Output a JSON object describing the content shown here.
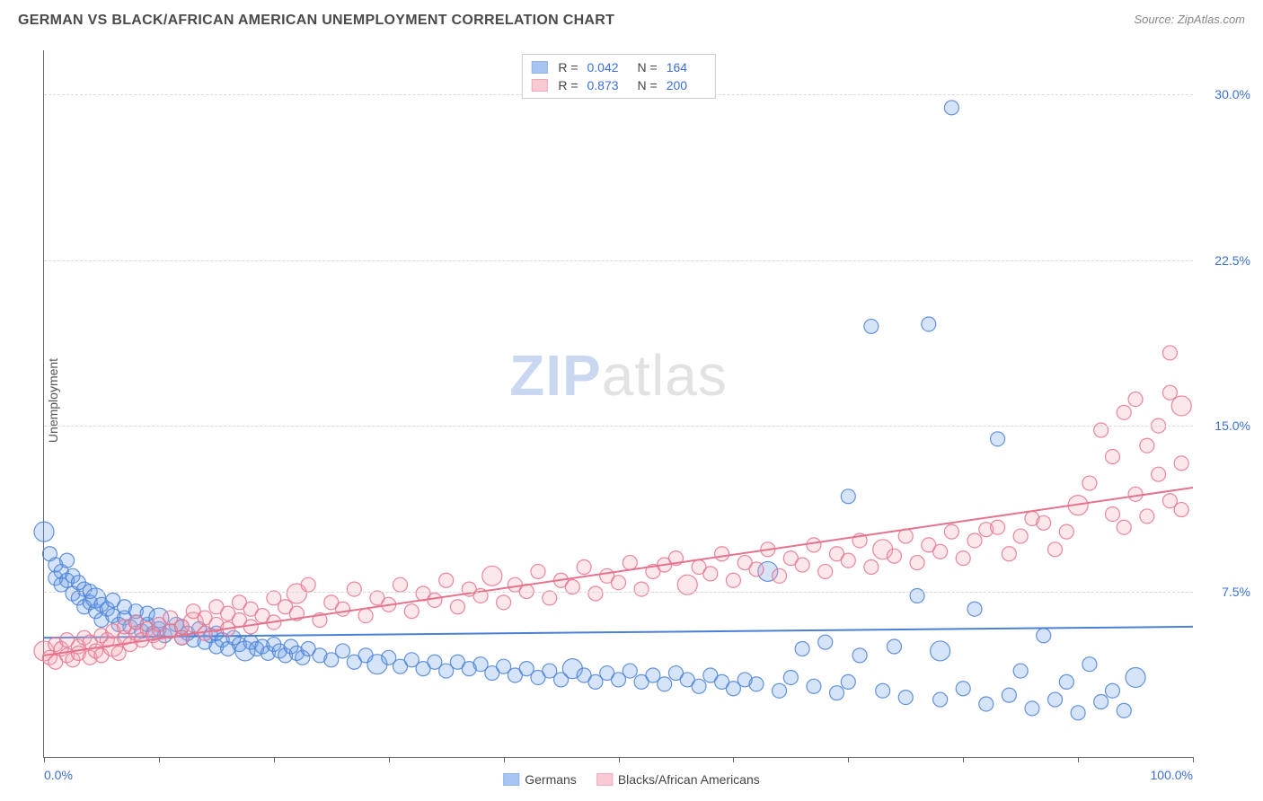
{
  "title": "GERMAN VS BLACK/AFRICAN AMERICAN UNEMPLOYMENT CORRELATION CHART",
  "source": "Source: ZipAtlas.com",
  "ylabel": "Unemployment",
  "watermark_a": "ZIP",
  "watermark_b": "atlas",
  "chart": {
    "type": "scatter",
    "background_color": "#ffffff",
    "grid_color": "#d8d8d8",
    "axis_color": "#666666",
    "xlim": [
      0,
      100
    ],
    "ylim": [
      0,
      32
    ],
    "xticks": [
      0,
      10,
      20,
      30,
      40,
      50,
      60,
      70,
      80,
      90,
      100
    ],
    "xtick_labels": {
      "0": "0.0%",
      "100": "100.0%"
    },
    "yticks": [
      7.5,
      15.0,
      22.5,
      30.0
    ],
    "ytick_labels": [
      "7.5%",
      "15.0%",
      "22.5%",
      "30.0%"
    ],
    "marker_radius": 8,
    "marker_radius_large": 11,
    "marker_fill_opacity": 0.28,
    "marker_stroke_opacity": 0.85,
    "marker_stroke_width": 1.2,
    "trend_line_width": 2,
    "series": [
      {
        "key": "germans",
        "label": "Germans",
        "color": "#6d9eeb",
        "stroke": "#4a80d6",
        "trend": {
          "y_at_x0": 5.4,
          "y_at_x100": 5.9
        },
        "R": "0.042",
        "N": "164",
        "points": [
          [
            0,
            10.2
          ],
          [
            0.5,
            9.2
          ],
          [
            1,
            8.7
          ],
          [
            1,
            8.1
          ],
          [
            1.5,
            8.4
          ],
          [
            1.5,
            7.8
          ],
          [
            2,
            8.0
          ],
          [
            2,
            8.9
          ],
          [
            2.5,
            7.4
          ],
          [
            2.5,
            8.2
          ],
          [
            3,
            7.2
          ],
          [
            3,
            7.9
          ],
          [
            3.5,
            7.6
          ],
          [
            3.5,
            6.8
          ],
          [
            4,
            7.0
          ],
          [
            4,
            7.5
          ],
          [
            4.5,
            6.6
          ],
          [
            4.5,
            7.2
          ],
          [
            5,
            6.9
          ],
          [
            5,
            6.2
          ],
          [
            5.5,
            6.7
          ],
          [
            6,
            6.4
          ],
          [
            6,
            7.1
          ],
          [
            6.5,
            6.0
          ],
          [
            7,
            6.3
          ],
          [
            7,
            6.8
          ],
          [
            7.5,
            5.9
          ],
          [
            8,
            6.1
          ],
          [
            8,
            6.6
          ],
          [
            8.5,
            5.7
          ],
          [
            9,
            6.0
          ],
          [
            9,
            6.5
          ],
          [
            9.5,
            5.6
          ],
          [
            10,
            5.8
          ],
          [
            10,
            6.3
          ],
          [
            10.5,
            5.5
          ],
          [
            11,
            5.7
          ],
          [
            11.5,
            6.0
          ],
          [
            12,
            5.4
          ],
          [
            12,
            5.9
          ],
          [
            12.5,
            5.6
          ],
          [
            13,
            5.3
          ],
          [
            13.5,
            5.8
          ],
          [
            14,
            5.2
          ],
          [
            14.5,
            5.5
          ],
          [
            15,
            5.0
          ],
          [
            15,
            5.6
          ],
          [
            15.5,
            5.3
          ],
          [
            16,
            4.9
          ],
          [
            16.5,
            5.4
          ],
          [
            17,
            5.1
          ],
          [
            17.5,
            4.8
          ],
          [
            18,
            5.2
          ],
          [
            18.5,
            4.9
          ],
          [
            19,
            5.0
          ],
          [
            19.5,
            4.7
          ],
          [
            20,
            5.1
          ],
          [
            20.5,
            4.8
          ],
          [
            21,
            4.6
          ],
          [
            21.5,
            5.0
          ],
          [
            22,
            4.7
          ],
          [
            22.5,
            4.5
          ],
          [
            23,
            4.9
          ],
          [
            24,
            4.6
          ],
          [
            25,
            4.4
          ],
          [
            26,
            4.8
          ],
          [
            27,
            4.3
          ],
          [
            28,
            4.6
          ],
          [
            29,
            4.2
          ],
          [
            30,
            4.5
          ],
          [
            31,
            4.1
          ],
          [
            32,
            4.4
          ],
          [
            33,
            4.0
          ],
          [
            34,
            4.3
          ],
          [
            35,
            3.9
          ],
          [
            36,
            4.3
          ],
          [
            37,
            4.0
          ],
          [
            38,
            4.2
          ],
          [
            39,
            3.8
          ],
          [
            40,
            4.1
          ],
          [
            41,
            3.7
          ],
          [
            42,
            4.0
          ],
          [
            43,
            3.6
          ],
          [
            44,
            3.9
          ],
          [
            45,
            3.5
          ],
          [
            46,
            4.0
          ],
          [
            47,
            3.7
          ],
          [
            48,
            3.4
          ],
          [
            49,
            3.8
          ],
          [
            50,
            3.5
          ],
          [
            51,
            3.9
          ],
          [
            52,
            3.4
          ],
          [
            53,
            3.7
          ],
          [
            54,
            3.3
          ],
          [
            55,
            3.8
          ],
          [
            56,
            3.5
          ],
          [
            57,
            3.2
          ],
          [
            58,
            3.7
          ],
          [
            59,
            3.4
          ],
          [
            60,
            3.1
          ],
          [
            61,
            3.5
          ],
          [
            62,
            3.3
          ],
          [
            63,
            8.4
          ],
          [
            64,
            3.0
          ],
          [
            65,
            3.6
          ],
          [
            66,
            4.9
          ],
          [
            67,
            3.2
          ],
          [
            68,
            5.2
          ],
          [
            69,
            2.9
          ],
          [
            70,
            11.8
          ],
          [
            70,
            3.4
          ],
          [
            71,
            4.6
          ],
          [
            72,
            19.5
          ],
          [
            73,
            3.0
          ],
          [
            74,
            5.0
          ],
          [
            75,
            2.7
          ],
          [
            76,
            7.3
          ],
          [
            77,
            19.6
          ],
          [
            78,
            2.6
          ],
          [
            78,
            4.8
          ],
          [
            79,
            29.4
          ],
          [
            80,
            3.1
          ],
          [
            81,
            6.7
          ],
          [
            82,
            2.4
          ],
          [
            83,
            14.4
          ],
          [
            84,
            2.8
          ],
          [
            85,
            3.9
          ],
          [
            86,
            2.2
          ],
          [
            87,
            5.5
          ],
          [
            88,
            2.6
          ],
          [
            89,
            3.4
          ],
          [
            90,
            2.0
          ],
          [
            91,
            4.2
          ],
          [
            92,
            2.5
          ],
          [
            93,
            3.0
          ],
          [
            94,
            2.1
          ],
          [
            95,
            3.6
          ]
        ]
      },
      {
        "key": "blacks",
        "label": "Blacks/African Americans",
        "color": "#f5a8b8",
        "stroke": "#e6728c",
        "trend": {
          "y_at_x0": 4.6,
          "y_at_x100": 12.2
        },
        "R": "0.873",
        "N": "200",
        "points": [
          [
            0,
            4.8
          ],
          [
            0.5,
            4.5
          ],
          [
            1,
            5.1
          ],
          [
            1,
            4.3
          ],
          [
            1.5,
            4.9
          ],
          [
            2,
            4.6
          ],
          [
            2,
            5.3
          ],
          [
            2.5,
            4.4
          ],
          [
            3,
            5.0
          ],
          [
            3,
            4.7
          ],
          [
            3.5,
            5.4
          ],
          [
            4,
            4.5
          ],
          [
            4,
            5.2
          ],
          [
            4.5,
            4.8
          ],
          [
            5,
            5.5
          ],
          [
            5,
            4.6
          ],
          [
            5.5,
            5.3
          ],
          [
            6,
            5.0
          ],
          [
            6,
            5.7
          ],
          [
            6.5,
            4.7
          ],
          [
            7,
            5.4
          ],
          [
            7,
            5.9
          ],
          [
            7.5,
            5.1
          ],
          [
            8,
            5.6
          ],
          [
            8,
            6.1
          ],
          [
            8.5,
            5.3
          ],
          [
            9,
            5.8
          ],
          [
            9.5,
            5.5
          ],
          [
            10,
            6.0
          ],
          [
            10,
            5.2
          ],
          [
            11,
            5.7
          ],
          [
            11,
            6.3
          ],
          [
            12,
            5.9
          ],
          [
            12,
            5.4
          ],
          [
            13,
            6.1
          ],
          [
            13,
            6.6
          ],
          [
            14,
            5.6
          ],
          [
            14,
            6.3
          ],
          [
            15,
            6.0
          ],
          [
            15,
            6.8
          ],
          [
            16,
            5.8
          ],
          [
            16,
            6.5
          ],
          [
            17,
            6.2
          ],
          [
            17,
            7.0
          ],
          [
            18,
            5.9
          ],
          [
            18,
            6.7
          ],
          [
            19,
            6.4
          ],
          [
            20,
            7.2
          ],
          [
            20,
            6.1
          ],
          [
            21,
            6.8
          ],
          [
            22,
            6.5
          ],
          [
            22,
            7.4
          ],
          [
            23,
            7.8
          ],
          [
            24,
            6.2
          ],
          [
            25,
            7.0
          ],
          [
            26,
            6.7
          ],
          [
            27,
            7.6
          ],
          [
            28,
            6.4
          ],
          [
            29,
            7.2
          ],
          [
            30,
            6.9
          ],
          [
            31,
            7.8
          ],
          [
            32,
            6.6
          ],
          [
            33,
            7.4
          ],
          [
            34,
            7.1
          ],
          [
            35,
            8.0
          ],
          [
            36,
            6.8
          ],
          [
            37,
            7.6
          ],
          [
            38,
            7.3
          ],
          [
            39,
            8.2
          ],
          [
            40,
            7.0
          ],
          [
            41,
            7.8
          ],
          [
            42,
            7.5
          ],
          [
            43,
            8.4
          ],
          [
            44,
            7.2
          ],
          [
            45,
            8.0
          ],
          [
            46,
            7.7
          ],
          [
            47,
            8.6
          ],
          [
            48,
            7.4
          ],
          [
            49,
            8.2
          ],
          [
            50,
            7.9
          ],
          [
            51,
            8.8
          ],
          [
            52,
            7.6
          ],
          [
            53,
            8.4
          ],
          [
            54,
            8.7
          ],
          [
            55,
            9.0
          ],
          [
            56,
            7.8
          ],
          [
            57,
            8.6
          ],
          [
            58,
            8.3
          ],
          [
            59,
            9.2
          ],
          [
            60,
            8.0
          ],
          [
            61,
            8.8
          ],
          [
            62,
            8.5
          ],
          [
            63,
            9.4
          ],
          [
            64,
            8.2
          ],
          [
            65,
            9.0
          ],
          [
            66,
            8.7
          ],
          [
            67,
            9.6
          ],
          [
            68,
            8.4
          ],
          [
            69,
            9.2
          ],
          [
            70,
            8.9
          ],
          [
            71,
            9.8
          ],
          [
            72,
            8.6
          ],
          [
            73,
            9.4
          ],
          [
            74,
            9.1
          ],
          [
            75,
            10.0
          ],
          [
            76,
            8.8
          ],
          [
            77,
            9.6
          ],
          [
            78,
            9.3
          ],
          [
            79,
            10.2
          ],
          [
            80,
            9.0
          ],
          [
            81,
            9.8
          ],
          [
            82,
            10.3
          ],
          [
            83,
            10.4
          ],
          [
            84,
            9.2
          ],
          [
            85,
            10.0
          ],
          [
            86,
            10.8
          ],
          [
            87,
            10.6
          ],
          [
            88,
            9.4
          ],
          [
            89,
            10.2
          ],
          [
            90,
            11.4
          ],
          [
            91,
            12.4
          ],
          [
            92,
            14.8
          ],
          [
            93,
            11.0
          ],
          [
            93,
            13.6
          ],
          [
            94,
            10.4
          ],
          [
            94,
            15.6
          ],
          [
            95,
            11.9
          ],
          [
            95,
            16.2
          ],
          [
            96,
            14.1
          ],
          [
            96,
            10.9
          ],
          [
            97,
            15.0
          ],
          [
            97,
            12.8
          ],
          [
            98,
            16.5
          ],
          [
            98,
            11.6
          ],
          [
            98,
            18.3
          ],
          [
            99,
            13.3
          ],
          [
            99,
            15.9
          ],
          [
            99,
            11.2
          ]
        ]
      }
    ]
  },
  "legend_top": {
    "r_label": "R =",
    "n_label": "N ="
  }
}
